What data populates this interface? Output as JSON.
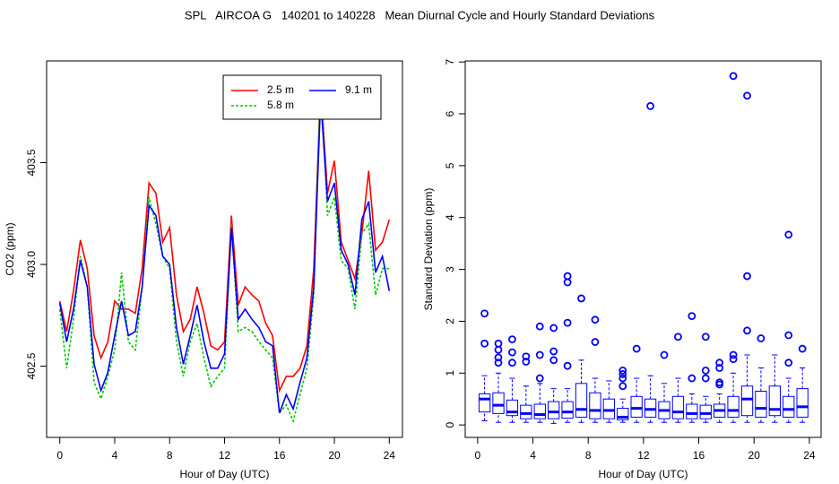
{
  "title": "SPL   AIRCOA G   140201 to 140228   Mean Diurnal Cycle and Hourly Standard Deviations",
  "chart_data": [
    {
      "type": "line",
      "x_label": "Hour of Day (UTC)",
      "y_label": "CO2 (ppm)",
      "xlim": [
        -0.96,
        24.96
      ],
      "ylim": [
        402.15,
        404.0
      ],
      "xticks": [
        0,
        4,
        8,
        12,
        16,
        20,
        24
      ],
      "yticks": [
        402.5,
        {
          "value": 403,
          "label": "403.0"
        },
        403.5
      ],
      "legend": "top-right",
      "x": [
        0,
        0.5,
        1,
        1.5,
        2,
        2.5,
        3,
        3.5,
        4,
        4.5,
        5,
        5.5,
        6,
        6.5,
        7,
        7.5,
        8,
        8.5,
        9,
        9.5,
        10,
        10.5,
        11,
        11.5,
        12,
        12.5,
        13,
        13.5,
        14,
        14.5,
        15,
        15.5,
        16,
        16.5,
        17,
        17.5,
        18,
        18.5,
        19,
        19.5,
        20,
        20.5,
        21,
        21.5,
        22,
        22.5,
        23,
        23.5,
        24
      ],
      "series": [
        {
          "name": "2.5 m",
          "color": "#ff0000",
          "linestyle": "solid",
          "values": [
            402.82,
            402.67,
            402.87,
            403.12,
            402.98,
            402.65,
            402.54,
            402.62,
            402.82,
            402.78,
            402.78,
            402.76,
            402.98,
            403.4,
            403.35,
            403.11,
            403.18,
            402.85,
            402.67,
            402.73,
            402.89,
            402.76,
            402.6,
            402.58,
            402.62,
            403.24,
            402.8,
            402.89,
            402.85,
            402.82,
            402.71,
            402.65,
            402.38,
            402.45,
            402.45,
            402.49,
            402.6,
            402.98,
            403.88,
            403.35,
            403.51,
            403.11,
            403.02,
            402.93,
            403.15,
            403.46,
            403.07,
            403.11,
            403.22
          ]
        },
        {
          "name": "5.8 m",
          "color": "#00cc00",
          "linestyle": "dashed",
          "values": [
            402.78,
            402.49,
            402.73,
            403.04,
            402.89,
            402.42,
            402.34,
            402.45,
            402.58,
            402.96,
            402.62,
            402.58,
            402.89,
            403.33,
            403.2,
            403.04,
            402.98,
            402.62,
            402.45,
            402.62,
            402.71,
            402.54,
            402.4,
            402.45,
            402.49,
            403.2,
            402.67,
            402.69,
            402.67,
            402.62,
            402.58,
            402.54,
            402.27,
            402.31,
            402.23,
            402.36,
            402.49,
            402.85,
            403.93,
            403.24,
            403.33,
            403.02,
            402.98,
            402.78,
            403.15,
            403.2,
            402.85,
            402.98,
            402.98
          ]
        },
        {
          "name": "9.1 m",
          "color": "#0000ff",
          "linestyle": "solid",
          "values": [
            402.81,
            402.62,
            402.78,
            403.02,
            402.89,
            402.51,
            402.38,
            402.47,
            402.65,
            402.82,
            402.65,
            402.67,
            402.89,
            403.29,
            403.24,
            403.04,
            403.0,
            402.69,
            402.51,
            402.65,
            402.8,
            402.62,
            402.49,
            402.49,
            402.56,
            403.18,
            402.73,
            402.78,
            402.73,
            402.69,
            402.62,
            402.6,
            402.27,
            402.36,
            402.29,
            402.42,
            402.54,
            402.89,
            403.82,
            403.31,
            403.4,
            403.07,
            403.0,
            402.85,
            403.22,
            403.31,
            402.96,
            403.04,
            402.87
          ]
        }
      ]
    },
    {
      "type": "box",
      "x_label": "Hour of Day (UTC)",
      "y_label": "Standard Deviation (ppm)",
      "xlim": [
        -0.9,
        24.85
      ],
      "ylim": [
        -0.24,
        7.02
      ],
      "xticks": [
        0,
        4,
        8,
        12,
        16,
        20,
        24
      ],
      "yticks": [
        0,
        1,
        2,
        3,
        4,
        5,
        6,
        7
      ],
      "color": "#0000ff",
      "x": [
        0.5,
        1.5,
        2.5,
        3.5,
        4.5,
        5.5,
        6.5,
        7.5,
        8.5,
        9.5,
        10.5,
        11.5,
        12.5,
        13.5,
        14.5,
        15.5,
        16.5,
        17.5,
        18.5,
        19.5,
        20.5,
        21.5,
        22.5,
        23.5
      ],
      "boxes": [
        {
          "low": 0.08,
          "q1": 0.25,
          "median": 0.5,
          "q3": 0.6,
          "high": 0.95,
          "outliers": [
            1.57,
            2.15
          ]
        },
        {
          "low": 0.05,
          "q1": 0.22,
          "median": 0.38,
          "q3": 0.62,
          "high": 1.0,
          "outliers": [
            1.2,
            1.3,
            1.45,
            1.57
          ]
        },
        {
          "low": 0.05,
          "q1": 0.18,
          "median": 0.25,
          "q3": 0.48,
          "high": 0.9,
          "outliers": [
            1.2,
            1.4,
            1.65
          ]
        },
        {
          "low": 0.05,
          "q1": 0.12,
          "median": 0.22,
          "q3": 0.38,
          "high": 0.75,
          "outliers": [
            1.22,
            1.32
          ]
        },
        {
          "low": 0.05,
          "q1": 0.12,
          "median": 0.2,
          "q3": 0.4,
          "high": 0.8,
          "outliers": [
            0.9,
            1.35,
            1.9
          ]
        },
        {
          "low": 0.03,
          "q1": 0.12,
          "median": 0.25,
          "q3": 0.45,
          "high": 0.7,
          "outliers": [
            1.25,
            1.42,
            1.87
          ]
        },
        {
          "low": 0.05,
          "q1": 0.13,
          "median": 0.25,
          "q3": 0.45,
          "high": 0.7,
          "outliers": [
            1.14,
            1.97,
            2.75,
            2.87
          ]
        },
        {
          "low": 0.05,
          "q1": 0.15,
          "median": 0.3,
          "q3": 0.8,
          "high": 1.25,
          "outliers": [
            2.44
          ]
        },
        {
          "low": 0.05,
          "q1": 0.12,
          "median": 0.28,
          "q3": 0.62,
          "high": 0.9,
          "outliers": [
            1.6,
            2.03
          ]
        },
        {
          "low": 0.05,
          "q1": 0.12,
          "median": 0.28,
          "q3": 0.5,
          "high": 0.85,
          "outliers": []
        },
        {
          "low": 0.05,
          "q1": 0.1,
          "median": 0.15,
          "q3": 0.32,
          "high": 0.5,
          "outliers": [
            0.75,
            0.9,
            0.98,
            1.05
          ]
        },
        {
          "low": 0.05,
          "q1": 0.15,
          "median": 0.32,
          "q3": 0.55,
          "high": 0.9,
          "outliers": [
            1.47
          ]
        },
        {
          "low": 0.05,
          "q1": 0.15,
          "median": 0.3,
          "q3": 0.5,
          "high": 0.95,
          "outliers": [
            6.15
          ]
        },
        {
          "low": 0.05,
          "q1": 0.12,
          "median": 0.28,
          "q3": 0.45,
          "high": 0.8,
          "outliers": [
            1.35
          ]
        },
        {
          "low": 0.05,
          "q1": 0.12,
          "median": 0.25,
          "q3": 0.55,
          "high": 0.9,
          "outliers": [
            1.7
          ]
        },
        {
          "low": 0.05,
          "q1": 0.12,
          "median": 0.22,
          "q3": 0.4,
          "high": 0.6,
          "outliers": [
            0.9,
            2.1
          ]
        },
        {
          "low": 0.05,
          "q1": 0.12,
          "median": 0.22,
          "q3": 0.38,
          "high": 0.55,
          "outliers": [
            0.9,
            1.05,
            1.7
          ]
        },
        {
          "low": 0.05,
          "q1": 0.15,
          "median": 0.28,
          "q3": 0.4,
          "high": 0.6,
          "outliers": [
            0.78,
            0.82,
            1.1,
            1.2
          ]
        },
        {
          "low": 0.05,
          "q1": 0.15,
          "median": 0.28,
          "q3": 0.55,
          "high": 1.0,
          "outliers": [
            1.27,
            1.35,
            6.73
          ]
        },
        {
          "low": 0.05,
          "q1": 0.18,
          "median": 0.5,
          "q3": 0.75,
          "high": 1.35,
          "outliers": [
            1.82,
            2.87,
            6.35
          ]
        },
        {
          "low": 0.05,
          "q1": 0.15,
          "median": 0.32,
          "q3": 0.65,
          "high": 1.1,
          "outliers": [
            1.67
          ]
        },
        {
          "low": 0.05,
          "q1": 0.18,
          "median": 0.3,
          "q3": 0.75,
          "high": 1.35,
          "outliers": []
        },
        {
          "low": 0.05,
          "q1": 0.15,
          "median": 0.3,
          "q3": 0.55,
          "high": 0.9,
          "outliers": [
            1.2,
            1.73,
            3.67
          ]
        },
        {
          "low": 0.05,
          "q1": 0.15,
          "median": 0.35,
          "q3": 0.7,
          "high": 1.1,
          "outliers": [
            1.47
          ]
        }
      ]
    }
  ]
}
